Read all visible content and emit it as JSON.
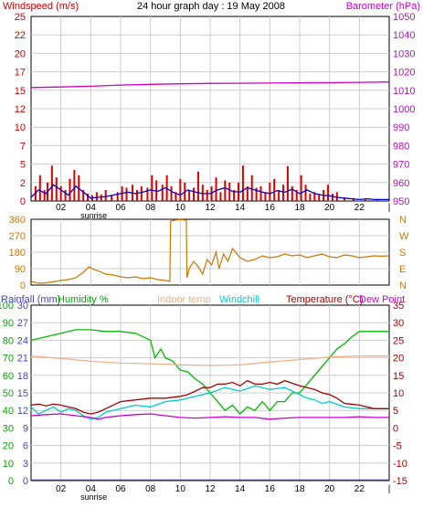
{
  "header": {
    "windspeed_label": "Windspeed (m/s)",
    "title": "24 hour graph day : 19 May 2008",
    "barometer_label": "Barometer (hPa)"
  },
  "legend": {
    "rainfall": "Rainfall (mm)",
    "humidity": "Humidity %",
    "indoor": "Indoor temp",
    "windchill": "Windchill",
    "temperature": "Temperature (°C)",
    "dewpoint": "Dew Point"
  },
  "colors": {
    "wind_gust": "#dd0000",
    "wind_avg": "#0000cc",
    "barometer": "#cc00cc",
    "direction": "#cc7700",
    "humidity": "#00bb00",
    "indoor": "#f0b088",
    "windchill": "#00cccc",
    "temperature": "#aa0000",
    "dewpoint": "#cc00cc",
    "rainfall": "#3333cc",
    "frame": "#000000"
  },
  "chart_data": [
    {
      "type": "line",
      "title": "24 hour graph day : 19 May 2008",
      "x_ticks": [
        "02",
        "04",
        "06",
        "08",
        "10",
        "12",
        "14",
        "16",
        "18",
        "20",
        "22",
        "|"
      ],
      "x_annotation": "sunrise",
      "x_range": [
        0,
        24
      ],
      "y_left": {
        "label": "Windspeed (m/s)",
        "range": [
          0,
          25
        ],
        "ticks": [
          "0",
          "2",
          "5",
          "7",
          "10",
          "12",
          "15",
          "17",
          "20",
          "22",
          "25"
        ]
      },
      "y_right": {
        "label": "Barometer (hPa)",
        "range": [
          950,
          1050
        ],
        "ticks": [
          "950",
          "960",
          "970",
          "980",
          "990",
          "1000",
          "1010",
          "1020",
          "1030",
          "1040",
          "1050"
        ]
      },
      "series": [
        {
          "name": "Windspeed (m/s)",
          "axis": "left",
          "kind": "gust-bars",
          "x": [
            0.3,
            0.6,
            0.9,
            1.1,
            1.4,
            1.7,
            2.0,
            2.3,
            2.6,
            2.9,
            3.2,
            3.5,
            3.8,
            4.1,
            4.4,
            4.7,
            5.0,
            5.4,
            5.8,
            6.1,
            6.4,
            6.8,
            7.1,
            7.4,
            7.8,
            8.1,
            8.4,
            8.8,
            9.1,
            9.4,
            9.7,
            10.0,
            10.3,
            10.6,
            10.9,
            11.2,
            11.5,
            11.8,
            12.1,
            12.4,
            12.7,
            13.0,
            13.3,
            13.6,
            13.9,
            14.2,
            14.5,
            14.8,
            15.1,
            15.4,
            15.7,
            16.0,
            16.3,
            16.6,
            16.9,
            17.2,
            17.5,
            17.8,
            18.1,
            18.4,
            18.7,
            19.0,
            19.3,
            19.6,
            19.9,
            20.2,
            20.5,
            21.0,
            21.6,
            22.4,
            23.2
          ],
          "values": [
            2.0,
            3.5,
            1.5,
            2.5,
            4.8,
            3.2,
            2.0,
            1.5,
            3.0,
            4.2,
            3.5,
            1.5,
            1.0,
            0.8,
            1.2,
            0.9,
            1.5,
            0.8,
            1.2,
            2.0,
            1.8,
            2.2,
            1.5,
            2.0,
            1.8,
            3.5,
            2.8,
            2.2,
            3.5,
            2.0,
            1.2,
            3.0,
            2.5,
            1.5,
            1.8,
            4.0,
            2.2,
            1.5,
            2.0,
            3.2,
            1.2,
            2.8,
            2.5,
            1.5,
            2.5,
            4.8,
            2.0,
            3.5,
            1.8,
            2.0,
            1.2,
            2.5,
            3.0,
            1.5,
            2.2,
            4.7,
            2.0,
            1.5,
            3.5,
            2.2,
            1.0,
            1.2,
            0.8,
            1.5,
            2.2,
            1.0,
            1.2,
            0.5,
            0.4,
            0.3,
            0.3
          ]
        },
        {
          "name": "Windspeed (m/s) average",
          "axis": "left",
          "kind": "line",
          "x": [
            0,
            0.5,
            1.0,
            1.5,
            2.0,
            2.5,
            3.0,
            3.5,
            4.0,
            4.5,
            5.0,
            5.5,
            6.0,
            6.5,
            7.0,
            7.5,
            8.0,
            8.5,
            9.0,
            9.5,
            10.0,
            10.5,
            11.0,
            11.5,
            12.0,
            12.5,
            13.0,
            13.5,
            14.0,
            14.5,
            15.0,
            15.5,
            16.0,
            16.5,
            17.0,
            17.5,
            18.0,
            18.5,
            19.0,
            19.5,
            20.0,
            20.5,
            21.0,
            21.5,
            22.0,
            22.5,
            23.0,
            23.5,
            24.0
          ],
          "values": [
            0.5,
            1.5,
            1.0,
            2.2,
            1.5,
            0.8,
            2.0,
            1.2,
            0.4,
            0.5,
            0.6,
            0.8,
            1.0,
            1.2,
            1.0,
            1.2,
            1.5,
            1.3,
            1.8,
            1.2,
            0.8,
            1.5,
            1.2,
            1.0,
            1.0,
            1.5,
            1.8,
            1.3,
            1.2,
            1.8,
            1.5,
            1.2,
            1.0,
            1.4,
            1.2,
            1.6,
            1.0,
            1.5,
            1.0,
            0.8,
            0.7,
            0.5,
            0.4,
            0.3,
            0.2,
            0.3,
            0.2,
            0.2,
            0.2
          ]
        },
        {
          "name": "Barometer (hPa)",
          "axis": "right",
          "kind": "line",
          "x": [
            0,
            2,
            4,
            6,
            8,
            10,
            12,
            14,
            16,
            18,
            20,
            22,
            24
          ],
          "values": [
            1011.5,
            1011.8,
            1012.2,
            1012.8,
            1013.2,
            1013.5,
            1013.7,
            1013.8,
            1013.9,
            1014.0,
            1014.1,
            1014.3,
            1014.5
          ]
        }
      ]
    },
    {
      "type": "line",
      "title": "",
      "x_range": [
        0,
        24
      ],
      "y_left": {
        "label": "",
        "range": [
          0,
          360
        ],
        "ticks": [
          "0",
          "90",
          "180",
          "270",
          "360"
        ]
      },
      "y_right": {
        "label": "",
        "ticks": [
          "N",
          "E",
          "S",
          "W",
          "N"
        ]
      },
      "series": [
        {
          "name": "",
          "axis": "left",
          "kind": "line",
          "x": [
            0,
            0.5,
            1.0,
            1.5,
            2.0,
            2.5,
            3.0,
            3.5,
            3.9,
            4.2,
            4.6,
            5.0,
            5.5,
            6.0,
            6.5,
            7.0,
            7.5,
            8.0,
            8.5,
            9.0,
            9.3,
            9.35,
            9.6,
            10.0,
            10.4,
            10.45,
            10.6,
            10.9,
            11.2,
            11.5,
            11.8,
            12.1,
            12.4,
            12.6,
            12.9,
            13.2,
            13.5,
            14.0,
            14.5,
            15.0,
            15.5,
            16.0,
            16.5,
            17.0,
            17.5,
            18.0,
            18.5,
            19.0,
            19.5,
            20.0,
            20.5,
            21.0,
            21.5,
            22.0,
            22.5,
            23.0,
            23.5,
            24.0
          ],
          "values": [
            20,
            10,
            12,
            18,
            25,
            30,
            40,
            70,
            100,
            85,
            75,
            60,
            55,
            45,
            40,
            45,
            35,
            40,
            30,
            25,
            20,
            350,
            355,
            358,
            355,
            40,
            90,
            130,
            100,
            60,
            140,
            110,
            180,
            90,
            170,
            130,
            200,
            150,
            130,
            140,
            160,
            150,
            155,
            170,
            160,
            165,
            150,
            160,
            170,
            155,
            150,
            165,
            160,
            150,
            155,
            160,
            158,
            160
          ]
        }
      ]
    },
    {
      "type": "line",
      "title": "",
      "x_ticks": [
        "02",
        "04",
        "06",
        "08",
        "10",
        "12",
        "14",
        "16",
        "18",
        "20",
        "22",
        "|"
      ],
      "x_annotation": "sunrise",
      "x_range": [
        0,
        24
      ],
      "y_left": {
        "label": "Rainfall (mm)",
        "range": [
          0,
          30
        ],
        "ticks": [
          "0",
          "3",
          "6",
          "9",
          "12",
          "15",
          "18",
          "21",
          "24",
          "27",
          "30"
        ]
      },
      "y_left_humidity": {
        "label": "Humidity %",
        "range": [
          0,
          100
        ],
        "ticks": [
          "0",
          "10",
          "20",
          "30",
          "40",
          "50",
          "60",
          "70",
          "80",
          "90",
          "100"
        ]
      },
      "y_right": {
        "label": "Temperature (°C)",
        "range": [
          -15,
          35
        ],
        "ticks": [
          "-15",
          "-10",
          "-5",
          "0",
          "5",
          "10",
          "15",
          "20",
          "25",
          "30",
          "35"
        ]
      },
      "series": [
        {
          "name": "Humidity %",
          "axis": "humidity",
          "kind": "line",
          "x": [
            0,
            1,
            2,
            3,
            4,
            5,
            6,
            7,
            7.5,
            8,
            8.3,
            8.7,
            9.0,
            9.5,
            10.0,
            10.5,
            11.0,
            11.5,
            12.0,
            12.5,
            13.0,
            13.5,
            14.0,
            14.5,
            15.0,
            15.5,
            16.0,
            16.5,
            17.0,
            17.5,
            18.0,
            18.5,
            19.0,
            19.5,
            20.0,
            20.5,
            21.0,
            21.5,
            22.0,
            23.0,
            24.0
          ],
          "values": [
            80,
            82,
            84,
            86,
            86,
            85,
            85,
            84,
            82,
            80,
            70,
            75,
            70,
            68,
            63,
            62,
            58,
            55,
            50,
            45,
            40,
            43,
            38,
            42,
            40,
            45,
            40,
            45,
            45,
            50,
            50,
            55,
            60,
            65,
            70,
            75,
            78,
            82,
            85,
            85,
            85
          ]
        },
        {
          "name": "Indoor temp",
          "axis": "right",
          "kind": "line",
          "x": [
            0,
            2,
            4,
            6,
            8,
            10,
            12,
            14,
            16,
            18,
            20,
            22,
            24
          ],
          "values": [
            20.5,
            19.8,
            19.0,
            18.5,
            18.3,
            18.0,
            17.8,
            18.0,
            18.8,
            19.5,
            20.2,
            20.5,
            20.5
          ]
        },
        {
          "name": "Windchill",
          "axis": "right",
          "kind": "line",
          "x": [
            0,
            0.5,
            1.0,
            1.5,
            2.0,
            2.5,
            3.0,
            3.5,
            4.0,
            4.5,
            5.0,
            6.0,
            7.0,
            8.0,
            9.0,
            10.0,
            11.0,
            12.0,
            13.0,
            14.0,
            15.0,
            16.0,
            17.0,
            18.0,
            18.5,
            19.0,
            19.5,
            20.0,
            21.0,
            22.0,
            23.0,
            24.0
          ],
          "values": [
            6.0,
            4.0,
            5.0,
            6.0,
            4.5,
            5.5,
            5.0,
            3.5,
            2.5,
            3.0,
            4.5,
            5.5,
            6.5,
            6.0,
            7.5,
            8.0,
            9.0,
            10.0,
            11.5,
            10.5,
            12.0,
            11.0,
            11.5,
            9.5,
            8.5,
            8.0,
            7.0,
            7.5,
            6.0,
            5.5,
            5.5,
            5.5
          ]
        },
        {
          "name": "Temperature (°C)",
          "axis": "right",
          "kind": "line",
          "x": [
            0,
            0.5,
            1.0,
            1.5,
            2.0,
            2.5,
            3.0,
            3.5,
            4.0,
            4.5,
            5.0,
            5.5,
            6.0,
            7.0,
            8.0,
            9.0,
            10.0,
            10.5,
            11.0,
            11.5,
            12.0,
            12.5,
            13.0,
            13.5,
            14.0,
            14.5,
            15.0,
            15.5,
            16.0,
            16.5,
            17.0,
            18.0,
            19.0,
            19.5,
            20.0,
            20.5,
            21.0,
            22.0,
            23.0,
            24.0
          ],
          "values": [
            6.5,
            6.8,
            6.3,
            6.8,
            6.5,
            6.0,
            5.5,
            4.5,
            4.0,
            4.5,
            5.5,
            6.5,
            7.5,
            8.0,
            8.5,
            8.5,
            9.0,
            9.5,
            10.5,
            11.5,
            11.5,
            12.5,
            12.5,
            13.0,
            12.0,
            13.5,
            12.5,
            12.5,
            13.0,
            12.5,
            13.5,
            12.0,
            11.0,
            10.0,
            9.5,
            8.5,
            7.0,
            6.5,
            5.5,
            5.5
          ]
        },
        {
          "name": "Dew Point",
          "axis": "right",
          "kind": "line",
          "x": [
            0,
            1,
            2,
            3,
            4,
            4.5,
            5,
            6,
            7,
            8,
            9,
            10,
            11,
            12,
            13,
            14,
            15,
            16,
            17,
            18,
            19,
            20,
            21,
            22,
            23,
            24
          ],
          "values": [
            3.5,
            3.8,
            4.0,
            3.5,
            3.0,
            2.5,
            3.0,
            3.5,
            3.8,
            4.0,
            3.5,
            3.0,
            2.8,
            3.0,
            3.2,
            3.0,
            3.0,
            2.5,
            2.8,
            3.0,
            3.0,
            3.0,
            3.0,
            3.2,
            3.0,
            3.0
          ]
        },
        {
          "name": "Rainfall (mm)",
          "axis": "left",
          "kind": "line",
          "x": [
            0,
            24
          ],
          "values": [
            0.1,
            0.1
          ]
        }
      ]
    }
  ]
}
